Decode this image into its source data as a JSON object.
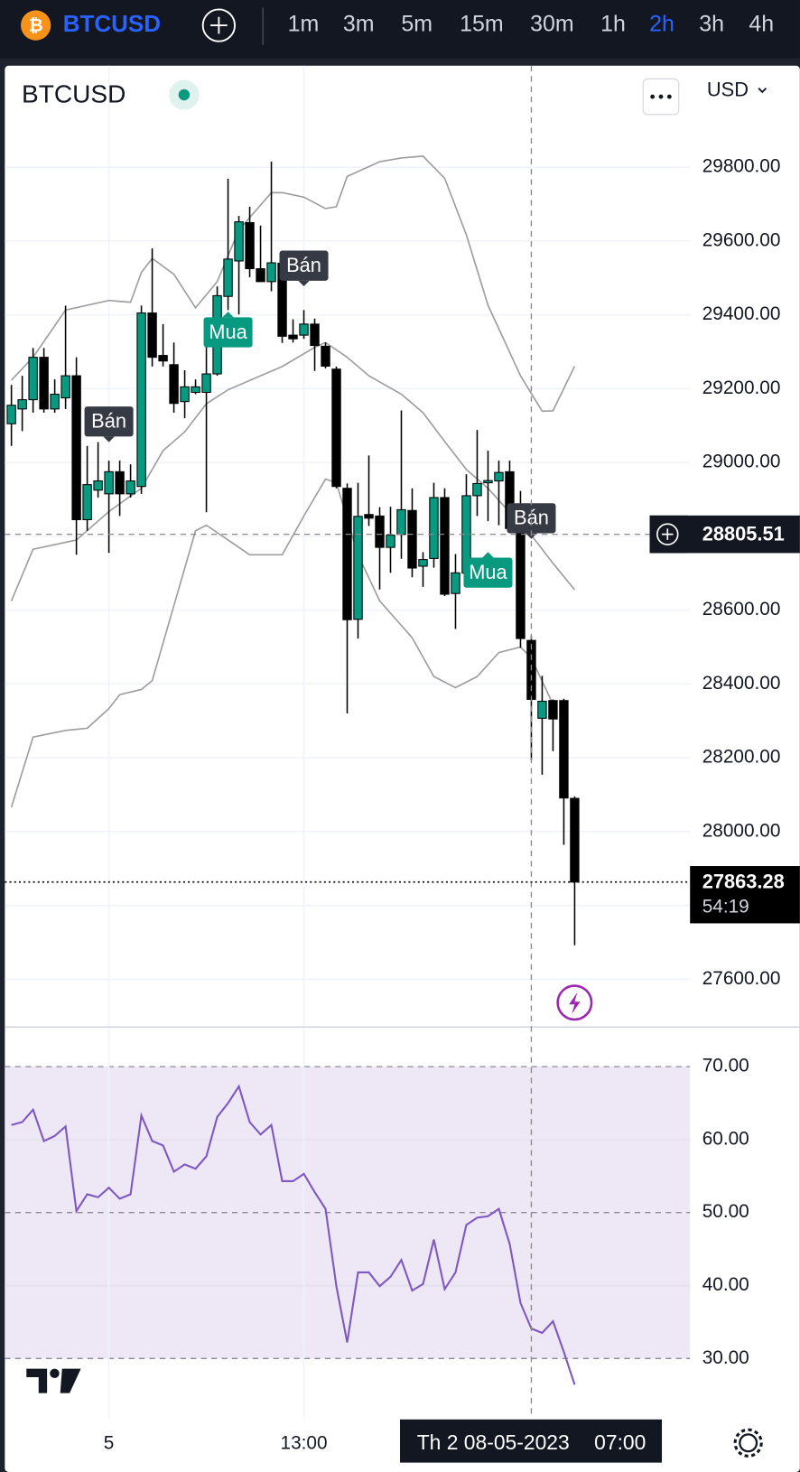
{
  "toolbar": {
    "symbol": "BTCUSD",
    "timeframes": [
      "1m",
      "3m",
      "5m",
      "15m",
      "30m",
      "1h",
      "2h",
      "3h",
      "4h"
    ],
    "active": "2h"
  },
  "chart_data": [
    {
      "type": "candlestick",
      "title": "BTCUSD",
      "currency": "USD",
      "up_color": "#089981",
      "down_color": "#000000",
      "band_color": "#9e9e9e",
      "ylim": [
        27473,
        30075
      ],
      "yticks": [
        {
          "value": 29800,
          "label": "29800.00"
        },
        {
          "value": 29600,
          "label": "29600.00"
        },
        {
          "value": 29400,
          "label": "29400.00"
        },
        {
          "value": 29200,
          "label": "29200.00"
        },
        {
          "value": 29000,
          "label": "29000.00"
        },
        {
          "value": 28800,
          "label": "28800.00"
        },
        {
          "value": 28600,
          "label": "28600.00"
        },
        {
          "value": 28400,
          "label": "28400.00"
        },
        {
          "value": 28200,
          "label": "28200.00"
        },
        {
          "value": 28000,
          "label": "28000.00"
        },
        {
          "value": 27800,
          "label": "27800.00"
        },
        {
          "value": 27600,
          "label": "27600.00"
        }
      ],
      "grid": true,
      "open": [
        29105,
        29145,
        29170,
        29285,
        29145,
        29175,
        29235,
        28845,
        28925,
        28915,
        28975,
        28915,
        28935,
        29405,
        29290,
        29265,
        29165,
        29190,
        29190,
        29240,
        29450,
        29546,
        29650,
        29525,
        29490,
        29540,
        29345,
        29345,
        29375,
        29315,
        29253,
        28930,
        28575,
        28859,
        28855,
        28770,
        28805,
        28870,
        28719,
        28740,
        28905,
        28645,
        28700,
        28910,
        28945,
        28950,
        28975,
        28845,
        28518,
        28307,
        28355,
        28355,
        28090
      ],
      "high": [
        29210,
        29235,
        29310,
        29310,
        29225,
        29425,
        29285,
        29045,
        29055,
        29005,
        29005,
        28995,
        29425,
        29580,
        29375,
        29325,
        29250,
        29225,
        29325,
        29477,
        29769,
        29668,
        29693,
        29642,
        29815,
        29566,
        29388,
        29413,
        29390,
        29325,
        29260,
        28943,
        28945,
        29019,
        28879,
        28880,
        29141,
        28930,
        28757,
        28945,
        28930,
        28752,
        28968,
        29088,
        29032,
        29005,
        29005,
        28923,
        28530,
        28422,
        28358,
        28360,
        28095
      ],
      "low": [
        29045,
        29085,
        29135,
        29135,
        29135,
        29145,
        28750,
        28815,
        28905,
        28755,
        28855,
        28905,
        28915,
        29260,
        29260,
        29135,
        29120,
        29185,
        28865,
        29235,
        29413,
        29401,
        29502,
        29490,
        29464,
        29324,
        29325,
        29335,
        29248,
        29255,
        28930,
        28320,
        28523,
        28828,
        28656,
        28701,
        28739,
        28689,
        28663,
        28715,
        28638,
        28549,
        28695,
        28855,
        28841,
        28830,
        28808,
        28498,
        28193,
        28154,
        28218,
        27964,
        27692
      ],
      "close": [
        29155,
        29170,
        29285,
        29145,
        29185,
        29235,
        28845,
        28940,
        28950,
        28975,
        28915,
        28950,
        29405,
        29285,
        29275,
        29160,
        29205,
        29205,
        29240,
        29452,
        29551,
        29652,
        29525,
        29490,
        29541,
        29342,
        29335,
        29375,
        29317,
        29261,
        28935,
        28574,
        28854,
        28849,
        28770,
        28803,
        28872,
        28714,
        28737,
        28905,
        28643,
        28701,
        28910,
        28943,
        28951,
        28973,
        28821,
        28523,
        28358,
        28353,
        28305,
        28091,
        27863.28
      ],
      "bands": [
        {
          "x": [
            0,
            2,
            5,
            9,
            11,
            12,
            13,
            15,
            17,
            19,
            21,
            24,
            25,
            27,
            29,
            30,
            31,
            34,
            36,
            38,
            40,
            42,
            44,
            47,
            49,
            50,
            52
          ],
          "values": [
            29223,
            29285,
            29413,
            29439,
            29434,
            29515,
            29553,
            29510,
            29419,
            29490,
            29630,
            29731,
            29731,
            29719,
            29688,
            29693,
            29775,
            29815,
            29825,
            29830,
            29770,
            29617,
            29426,
            29235,
            29139,
            29140,
            29261
          ]
        },
        {
          "x": [
            0,
            2,
            6,
            9,
            12,
            14,
            16,
            18,
            20,
            23,
            25,
            28,
            29,
            31,
            33,
            36,
            38,
            40,
            42,
            44,
            46,
            48,
            50,
            52
          ],
          "values": [
            28625,
            28765,
            28790,
            28867,
            28930,
            29032,
            29083,
            29159,
            29197,
            29235,
            29260,
            29312,
            29325,
            29285,
            29235,
            29185,
            29135,
            29057,
            28981,
            28930,
            28865,
            28803,
            28727,
            28655
          ]
        },
        {
          "x": [
            0,
            2,
            5,
            7,
            9,
            10,
            12,
            13,
            15,
            17,
            18,
            20,
            22,
            25,
            27,
            29,
            30,
            32,
            34,
            37,
            39,
            41,
            43,
            45,
            47,
            48,
            50
          ],
          "values": [
            28066,
            28256,
            28274,
            28280,
            28333,
            28371,
            28385,
            28409,
            28612,
            28815,
            28830,
            28790,
            28750,
            28750,
            28855,
            28955,
            28945,
            28750,
            28625,
            28525,
            28420,
            28390,
            28420,
            28485,
            28500,
            28470,
            28345
          ]
        }
      ],
      "signals": [
        {
          "label": "Bán",
          "candle": 9
        },
        {
          "label": "Mua",
          "candle": 20
        },
        {
          "label": "Bán",
          "candle": 27
        },
        {
          "label": "Mua",
          "candle": 44
        },
        {
          "label": "Bán",
          "candle": 48
        }
      ],
      "crosshair_price": 28805.51,
      "countdown": "54:19"
    },
    {
      "type": "line",
      "color": "#7e57c2",
      "band_fill": "#ede7f6",
      "ylim": [
        21.9,
        75.3
      ],
      "yticks": [
        {
          "value": 70,
          "label": "70.00"
        },
        {
          "value": 60,
          "label": "60.00"
        },
        {
          "value": 50,
          "label": "50.00"
        },
        {
          "value": 40,
          "label": "40.00"
        },
        {
          "value": 30,
          "label": "30.00"
        }
      ],
      "levels": [
        30,
        50,
        70
      ],
      "x": [
        0,
        1,
        2,
        3,
        4,
        5,
        6,
        7,
        8,
        9,
        10,
        11,
        12,
        13,
        14,
        15,
        16,
        17,
        18,
        19,
        20,
        21,
        22,
        23,
        24,
        25,
        26,
        27,
        28,
        29,
        30,
        31,
        32,
        33,
        34,
        35,
        36,
        37,
        38,
        39,
        40,
        41,
        42,
        43,
        44,
        45,
        46,
        47,
        48,
        49,
        50,
        51,
        52
      ],
      "values": [
        62.0,
        62.4,
        64.1,
        59.8,
        60.5,
        61.8,
        50.2,
        52.5,
        52.1,
        53.4,
        51.9,
        52.5,
        63.3,
        59.8,
        59.2,
        55.6,
        56.6,
        56.0,
        57.7,
        63.1,
        65.0,
        67.3,
        62.4,
        60.7,
        62.0,
        54.3,
        54.3,
        55.3,
        52.8,
        50.5,
        39.9,
        32.2,
        41.8,
        41.8,
        39.9,
        41.2,
        43.5,
        39.3,
        40.2,
        46.3,
        39.5,
        41.8,
        48.3,
        49.3,
        49.5,
        50.5,
        45.7,
        37.6,
        34.1,
        33.5,
        35.1,
        30.9,
        26.4
      ],
      "xticks": [
        {
          "value": 9,
          "label": "5"
        },
        {
          "value": 27,
          "label": "13:00"
        }
      ],
      "crosshair_date": "Th 2 08-05-2023",
      "crosshair_time": "07:00"
    }
  ]
}
